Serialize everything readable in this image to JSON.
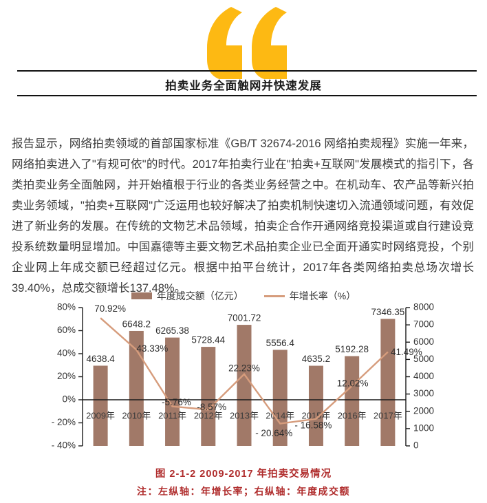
{
  "header": {
    "title": "拍卖业务全面触网并快速发展"
  },
  "paragraph": "报告显示，网络拍卖领域的首部国家标准《GB/T 32674-2016 网络拍卖规程》实施一年来，网络拍卖进入了\"有规可依\"的时代。2017年拍卖行业在\"拍卖+互联网\"发展模式的指引下，各类拍卖业务全面触网，并开始植根于行业的各类业务经营之中。在机动车、农产品等新兴拍卖业务领域，\"拍卖+互联网\"广泛运用也较好解决了拍卖机制快速切入流通领域问题，有效促进了新业务的发展。在传统的文物艺术品领域，拍卖企合作开通网络竞投渠道或自行建设竞投系统数量明显增加。中国嘉德等主要文物艺术品拍卖企业已全面开通实时网络竞投，个别企业网上年成交额已经超过亿元。根据中拍平台统计，2017年各类网络拍卖总场次增长39.40%，总成交额增长137.48%。",
  "chart_data": {
    "type": "bar",
    "subtype": "bar+line combo, dual axis",
    "categories": [
      "2009年",
      "2010年",
      "2011年",
      "2012年",
      "2013年",
      "2014年",
      "2015年",
      "2016年",
      "2017年"
    ],
    "series": [
      {
        "name": "年度成交额（亿元）",
        "type": "bar",
        "axis": "right",
        "color": "#a17968",
        "values": [
          4638.4,
          6648.2,
          6265.38,
          5728.44,
          7001.72,
          5556.4,
          4635.2,
          5192.28,
          7346.35
        ],
        "labels": [
          "4638.4",
          "6648.2",
          "6265.38",
          "5728.44",
          "7001.72",
          "5556.4",
          "4635.2",
          "5192.28",
          "7346.35"
        ]
      },
      {
        "name": "年增长率（%）",
        "type": "line",
        "axis": "left",
        "color": "#d69c7c",
        "values": [
          70.92,
          43.33,
          -5.76,
          -8.57,
          22.23,
          -20.64,
          -16.58,
          12.02,
          41.49
        ],
        "labels": [
          "70.92%",
          "43.33%",
          "-5.76%",
          "-8.57%",
          "22.23%",
          "- 20.64%",
          "- 16.58%",
          "12.02%",
          "41.49%"
        ]
      }
    ],
    "left_axis": {
      "min": -40,
      "max": 80,
      "step": 20,
      "ticks": [
        "80%",
        "60%",
        "40%",
        "20%",
        "0%",
        "- 20%",
        "- 40%"
      ]
    },
    "right_axis": {
      "min": 0,
      "max": 8000,
      "step": 1000,
      "ticks": [
        "8000",
        "7000",
        "6000",
        "5000",
        "4000",
        "3000",
        "2000",
        "1000",
        "0"
      ]
    },
    "grid": "off",
    "legend_position": "top-center",
    "zero_line": true
  },
  "figure": {
    "caption": "图 2-1-2  2009-2017 年拍卖交易情况",
    "note": "注：左纵轴：年增长率；右纵轴：年度成交额"
  }
}
